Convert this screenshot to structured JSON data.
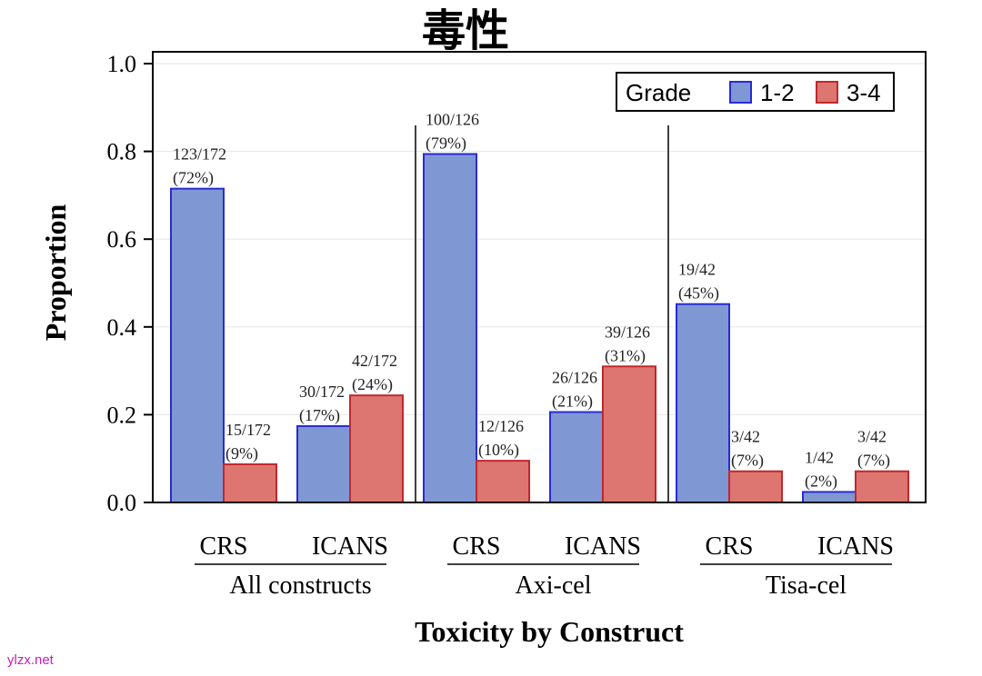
{
  "chart_data": {
    "type": "bar",
    "title": "毒性",
    "xlabel": "Toxicity by Construct",
    "ylabel": "Proportion",
    "ylim": [
      0,
      1.0
    ],
    "yticks": [
      "0.0",
      "0.2",
      "0.4",
      "0.6",
      "0.8",
      "1.0"
    ],
    "grid": true,
    "legend": {
      "title": "Grade",
      "position": "top-right",
      "entries": [
        {
          "name": "1-2",
          "color": "#7f98d3",
          "edge": "#2a2ad6"
        },
        {
          "name": "3-4",
          "color": "#dd7570",
          "edge": "#c0282d"
        }
      ]
    },
    "groups": [
      {
        "name": "All constructs",
        "categories": [
          {
            "name": "CRS",
            "bars": [
              {
                "series": "1-2",
                "value": 0.715,
                "label_top": "123/172",
                "label_bottom": "(72%)"
              },
              {
                "series": "3-4",
                "value": 0.087,
                "label_top": "15/172",
                "label_bottom": "(9%)"
              }
            ]
          },
          {
            "name": "ICANS",
            "bars": [
              {
                "series": "1-2",
                "value": 0.174,
                "label_top": "30/172",
                "label_bottom": "(17%)"
              },
              {
                "series": "3-4",
                "value": 0.244,
                "label_top": "42/172",
                "label_bottom": "(24%)"
              }
            ]
          }
        ]
      },
      {
        "name": "Axi-cel",
        "categories": [
          {
            "name": "CRS",
            "bars": [
              {
                "series": "1-2",
                "value": 0.794,
                "label_top": "100/126",
                "label_bottom": "(79%)"
              },
              {
                "series": "3-4",
                "value": 0.095,
                "label_top": "12/126",
                "label_bottom": "(10%)"
              }
            ]
          },
          {
            "name": "ICANS",
            "bars": [
              {
                "series": "1-2",
                "value": 0.206,
                "label_top": "26/126",
                "label_bottom": "(21%)"
              },
              {
                "series": "3-4",
                "value": 0.31,
                "label_top": "39/126",
                "label_bottom": "(31%)"
              }
            ]
          }
        ]
      },
      {
        "name": "Tisa-cel",
        "categories": [
          {
            "name": "CRS",
            "bars": [
              {
                "series": "1-2",
                "value": 0.452,
                "label_top": "19/42",
                "label_bottom": "(45%)"
              },
              {
                "series": "3-4",
                "value": 0.071,
                "label_top": "3/42",
                "label_bottom": "(7%)"
              }
            ]
          },
          {
            "name": "ICANS",
            "bars": [
              {
                "series": "1-2",
                "value": 0.024,
                "label_top": "1/42",
                "label_bottom": "(2%)"
              },
              {
                "series": "3-4",
                "value": 0.071,
                "label_top": "3/42",
                "label_bottom": "(7%)"
              }
            ]
          }
        ]
      }
    ]
  },
  "watermark": "ylzx.net"
}
